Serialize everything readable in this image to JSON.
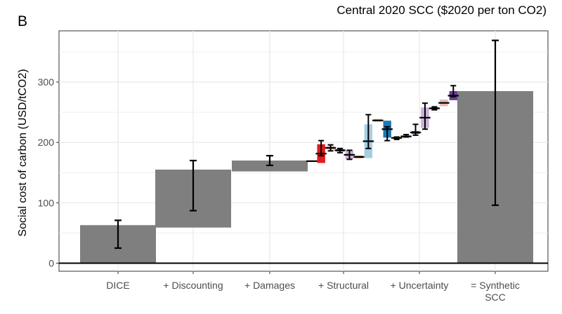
{
  "panel_label": "B",
  "colors": {
    "gridline": "#ebebeb",
    "main_bar": "#7f7f7f",
    "axis_text": "#4d4d4d",
    "text": "#000000",
    "step_palette": [
      "#e31a1c",
      "#e6b8b8",
      "#6a3d9a",
      "#cab2d6",
      "#b15928",
      "#a6cee3",
      "#fdbf6f",
      "#1f78b4",
      "#ff7f00",
      "#b2df8a",
      "#6a3d9a",
      "#cab2d6"
    ]
  },
  "chart_data": {
    "type": "bar",
    "subtype": "waterfall",
    "title": "Central 2020 SCC ($2020 per ton CO2)",
    "ylabel": "Social cost of carbon (USD/tCO2)",
    "xlabel": "",
    "ylim": [
      0,
      400
    ],
    "yticks": [
      0,
      100,
      200,
      300
    ],
    "grid": true,
    "categories": [
      "DICE",
      "+ Discounting",
      "+ Damages",
      "+ Structural",
      "+ Uncertainty",
      "= Synthetic SCC"
    ],
    "bars": [
      {
        "category": "DICE",
        "start": 0,
        "end": 63,
        "err_low": 25,
        "err_high": 71
      },
      {
        "category": "+ Discounting",
        "start": 59,
        "end": 155,
        "err_low": 87,
        "err_high": 170
      },
      {
        "category": "+ Damages",
        "start": 152,
        "end": 170,
        "err_low": 162,
        "err_high": 178
      },
      {
        "category": "= Synthetic SCC",
        "start": 0,
        "end": 285,
        "err_low": 96,
        "err_high": 369
      }
    ],
    "steps": [
      {
        "group": "+ Damages",
        "start": 168,
        "end": 170,
        "err_low": 168,
        "err_high": 170
      },
      {
        "group": "+ Structural",
        "start": 166,
        "end": 197,
        "err_low": 178,
        "err_high": 203
      },
      {
        "group": "+ Structural",
        "start": 188,
        "end": 194,
        "err_low": 186,
        "err_high": 196
      },
      {
        "group": "+ Structural",
        "start": 185,
        "end": 189,
        "err_low": 183,
        "err_high": 190
      },
      {
        "group": "+ Structural",
        "start": 172,
        "end": 187,
        "err_low": 172,
        "err_high": 187
      },
      {
        "group": "+ Structural",
        "start": 174,
        "end": 178,
        "err_low": 174,
        "err_high": 176
      },
      {
        "group": "+ Structural",
        "start": 174,
        "end": 230,
        "err_low": 190,
        "err_high": 246
      },
      {
        "group": "+ Structural",
        "start": 234,
        "end": 239,
        "err_low": 235,
        "err_high": 238
      },
      {
        "group": "+ Uncertainty",
        "start": 208,
        "end": 236,
        "err_low": 203,
        "err_high": 226
      },
      {
        "group": "+ Uncertainty",
        "start": 206,
        "end": 209,
        "err_low": 205,
        "err_high": 209
      },
      {
        "group": "+ Uncertainty",
        "start": 208,
        "end": 212,
        "err_low": 209,
        "err_high": 213
      },
      {
        "group": "+ Uncertainty",
        "start": 214,
        "end": 219,
        "err_low": 212,
        "err_high": 230
      },
      {
        "group": "+ Uncertainty",
        "start": 224,
        "end": 258,
        "err_low": 222,
        "err_high": 265
      },
      {
        "group": "+ Uncertainty",
        "start": 255,
        "end": 258,
        "err_low": 254,
        "err_high": 259
      },
      {
        "group": "+ Uncertainty",
        "start": 260,
        "end": 271,
        "err_low": 260,
        "err_high": 262
      },
      {
        "group": "+ Uncertainty",
        "start": 270,
        "end": 285,
        "err_low": 276,
        "err_high": 294
      }
    ]
  }
}
